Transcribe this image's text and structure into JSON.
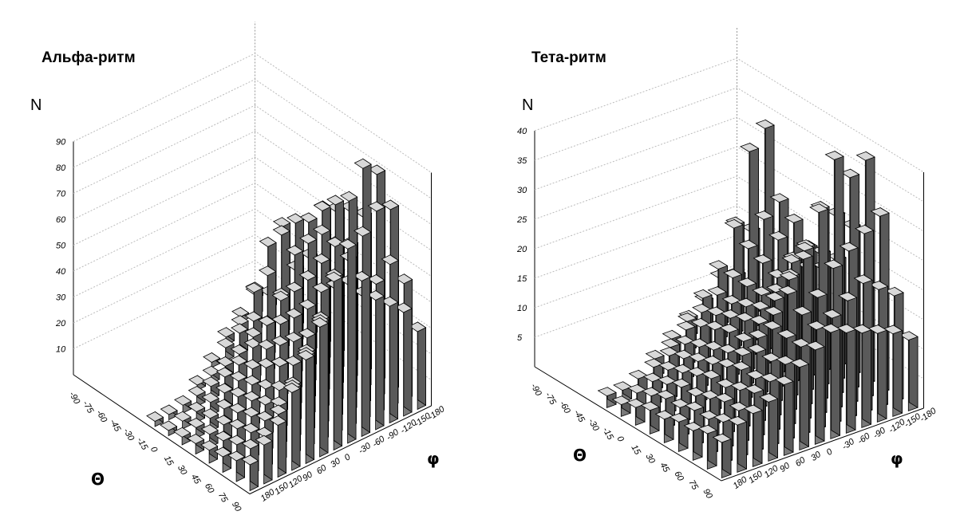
{
  "chart_data": [
    {
      "type": "bar3d",
      "title": "Альфа-ритм",
      "zlabel": "N",
      "theta_label": "Θ",
      "phi_label": "φ",
      "z_ticks": [
        "10",
        "20",
        "30",
        "40",
        "50",
        "60",
        "70",
        "80",
        "90"
      ],
      "theta_ticks": [
        "-90",
        "-75",
        "-60",
        "-45",
        "-30",
        "-15",
        "0",
        "15",
        "30",
        "45",
        "60",
        "75",
        "90"
      ],
      "phi_ticks": [
        "-180",
        "-150",
        "-120",
        "-90",
        "-60",
        "-30",
        "0",
        "30",
        "60",
        "90",
        "120",
        "150",
        "180"
      ],
      "zlim": [
        0,
        90
      ],
      "grid": true,
      "bars": [
        [
          3,
          0,
          0,
          0,
          0,
          0,
          0,
          0,
          0,
          0,
          0,
          0,
          0
        ],
        [
          5,
          8,
          2,
          0,
          0,
          0,
          0,
          0,
          0,
          0,
          0,
          0,
          0
        ],
        [
          35,
          30,
          15,
          5,
          3,
          0,
          0,
          0,
          0,
          0,
          0,
          0,
          0
        ],
        [
          40,
          38,
          25,
          10,
          8,
          5,
          2,
          0,
          0,
          0,
          0,
          0,
          0
        ],
        [
          30,
          28,
          20,
          12,
          10,
          6,
          4,
          3,
          2,
          0,
          0,
          0,
          0
        ],
        [
          52,
          50,
          40,
          25,
          18,
          12,
          8,
          6,
          5,
          4,
          3,
          2,
          2
        ],
        [
          55,
          58,
          48,
          32,
          22,
          15,
          10,
          8,
          6,
          5,
          4,
          3,
          2
        ],
        [
          45,
          48,
          55,
          40,
          28,
          20,
          14,
          10,
          8,
          6,
          5,
          4,
          3
        ],
        [
          60,
          65,
          70,
          50,
          35,
          25,
          18,
          12,
          10,
          8,
          6,
          5,
          4
        ],
        [
          80,
          85,
          75,
          60,
          45,
          30,
          22,
          15,
          12,
          10,
          8,
          6,
          5
        ],
        [
          70,
          72,
          65,
          58,
          50,
          40,
          30,
          20,
          15,
          12,
          10,
          8,
          6
        ],
        [
          45,
          55,
          50,
          48,
          55,
          60,
          45,
          35,
          25,
          18,
          12,
          10,
          8
        ],
        [
          30,
          40,
          45,
          50,
          60,
          75,
          65,
          50,
          40,
          30,
          20,
          15,
          10
        ]
      ]
    },
    {
      "type": "bar3d",
      "title": "Тета-ритм",
      "zlabel": "N",
      "theta_label": "Θ",
      "phi_label": "φ",
      "z_ticks": [
        "5",
        "10",
        "15",
        "20",
        "25",
        "30",
        "35",
        "40"
      ],
      "theta_ticks": [
        "-90",
        "-75",
        "-60",
        "-45",
        "-30",
        "-15",
        "0",
        "15",
        "30",
        "45",
        "60",
        "75",
        "90"
      ],
      "phi_ticks": [
        "-180",
        "-150",
        "-120",
        "-90",
        "-60",
        "-30",
        "0",
        "30",
        "60",
        "90",
        "120",
        "150",
        "180"
      ],
      "zlim": [
        0,
        40
      ],
      "grid": true,
      "bars": [
        [
          5,
          0,
          0,
          0,
          0,
          0,
          0,
          0,
          0,
          0,
          0,
          0,
          0
        ],
        [
          14,
          16,
          8,
          5,
          3,
          0,
          0,
          0,
          0,
          0,
          0,
          0,
          0
        ],
        [
          33,
          30,
          18,
          12,
          8,
          5,
          3,
          0,
          0,
          0,
          0,
          0,
          0
        ],
        [
          22,
          20,
          16,
          12,
          10,
          8,
          6,
          4,
          3,
          0,
          0,
          0,
          0
        ],
        [
          20,
          18,
          15,
          12,
          10,
          9,
          8,
          6,
          5,
          4,
          3,
          2,
          2
        ],
        [
          17,
          16,
          14,
          12,
          11,
          10,
          9,
          7,
          6,
          5,
          4,
          3,
          2
        ],
        [
          15,
          16,
          18,
          14,
          12,
          11,
          10,
          8,
          7,
          6,
          5,
          4,
          3
        ],
        [
          18,
          20,
          22,
          18,
          15,
          12,
          10,
          9,
          8,
          7,
          6,
          5,
          4
        ],
        [
          25,
          28,
          30,
          24,
          20,
          15,
          12,
          10,
          9,
          8,
          6,
          5,
          4
        ],
        [
          38,
          36,
          40,
          32,
          25,
          20,
          15,
          12,
          10,
          8,
          7,
          6,
          5
        ],
        [
          30,
          28,
          26,
          24,
          20,
          18,
          15,
          12,
          10,
          9,
          8,
          6,
          5
        ],
        [
          18,
          20,
          22,
          20,
          18,
          17,
          15,
          13,
          11,
          10,
          8,
          7,
          6
        ],
        [
          12,
          14,
          15,
          16,
          17,
          18,
          16,
          14,
          12,
          10,
          9,
          8,
          6
        ]
      ]
    }
  ]
}
